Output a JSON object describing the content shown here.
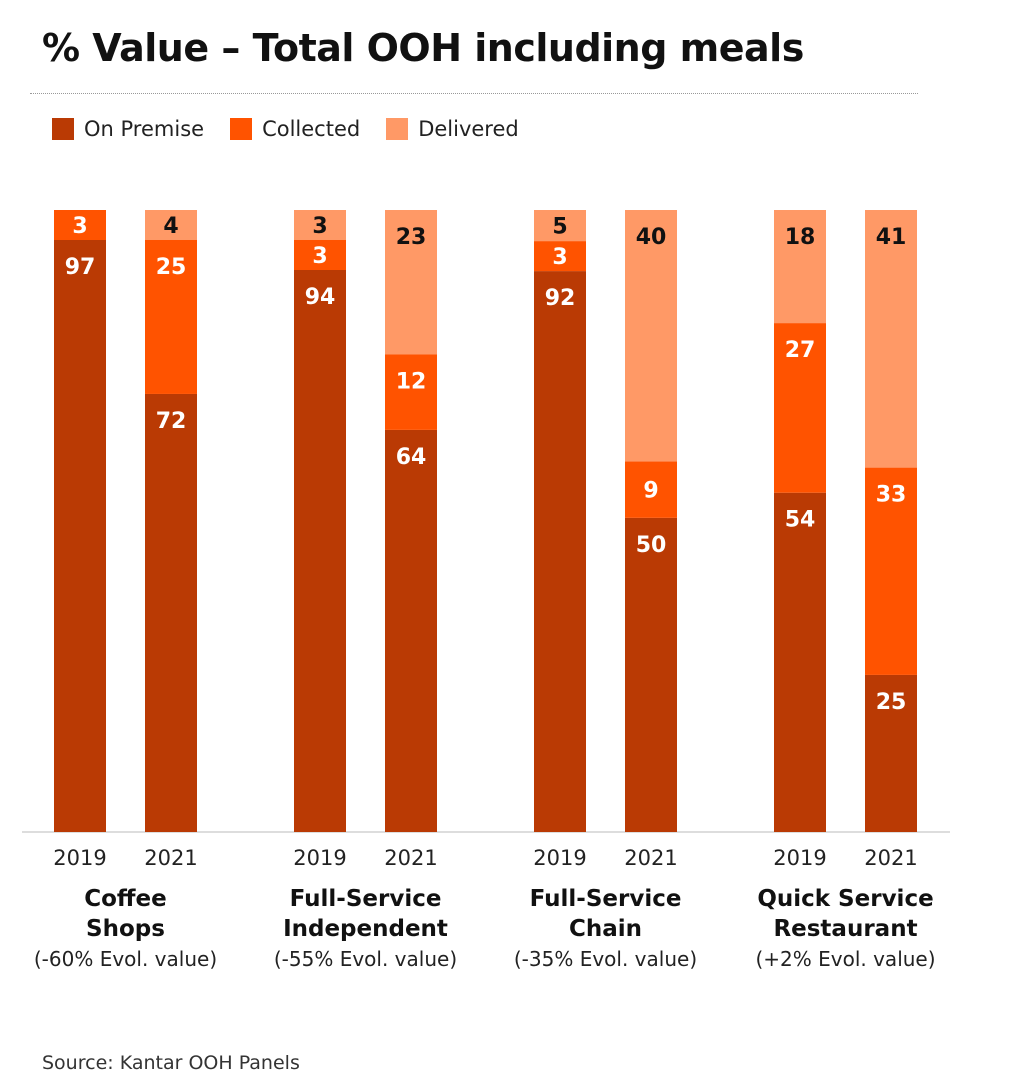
{
  "title": "% Value – Total OOH including meals",
  "source": "Source: Kantar OOH Panels",
  "colors": {
    "On Premise": "#BA3A04",
    "Collected": "#FF5300",
    "Delivered": "#FF9966"
  },
  "chart_data": {
    "type": "bar",
    "stacked": true,
    "title": "% Value – Total OOH including meals",
    "legend": [
      "On Premise",
      "Collected",
      "Delivered"
    ],
    "legend_position": "top-left",
    "ylim": [
      0,
      100
    ],
    "groups": [
      {
        "name_line1": "Coffee",
        "name_line2": "Shops",
        "evol": "(-60% Evol. value)",
        "bars": [
          {
            "year": "2019",
            "On Premise": 97,
            "Collected": 3,
            "Delivered": 0
          },
          {
            "year": "2021",
            "On Premise": 72,
            "Collected": 25,
            "Delivered": 4
          }
        ]
      },
      {
        "name_line1": "Full-Service",
        "name_line2": "Independent",
        "evol": "(-55% Evol. value)",
        "bars": [
          {
            "year": "2019",
            "On Premise": 94,
            "Collected": 3,
            "Delivered": 3
          },
          {
            "year": "2021",
            "On Premise": 64,
            "Collected": 12,
            "Delivered": 23
          }
        ]
      },
      {
        "name_line1": "Full-Service",
        "name_line2": "Chain",
        "evol": "(-35% Evol. value)",
        "bars": [
          {
            "year": "2019",
            "On Premise": 92,
            "Collected": 3,
            "Delivered": 5
          },
          {
            "year": "2021",
            "On Premise": 50,
            "Collected": 9,
            "Delivered": 40
          }
        ]
      },
      {
        "name_line1": "Quick Service",
        "name_line2": "Restaurant",
        "evol": "(+2% Evol. value)",
        "bars": [
          {
            "year": "2019",
            "On Premise": 54,
            "Collected": 27,
            "Delivered": 18
          },
          {
            "year": "2021",
            "On Premise": 25,
            "Collected": 33,
            "Delivered": 41
          }
        ]
      }
    ]
  }
}
